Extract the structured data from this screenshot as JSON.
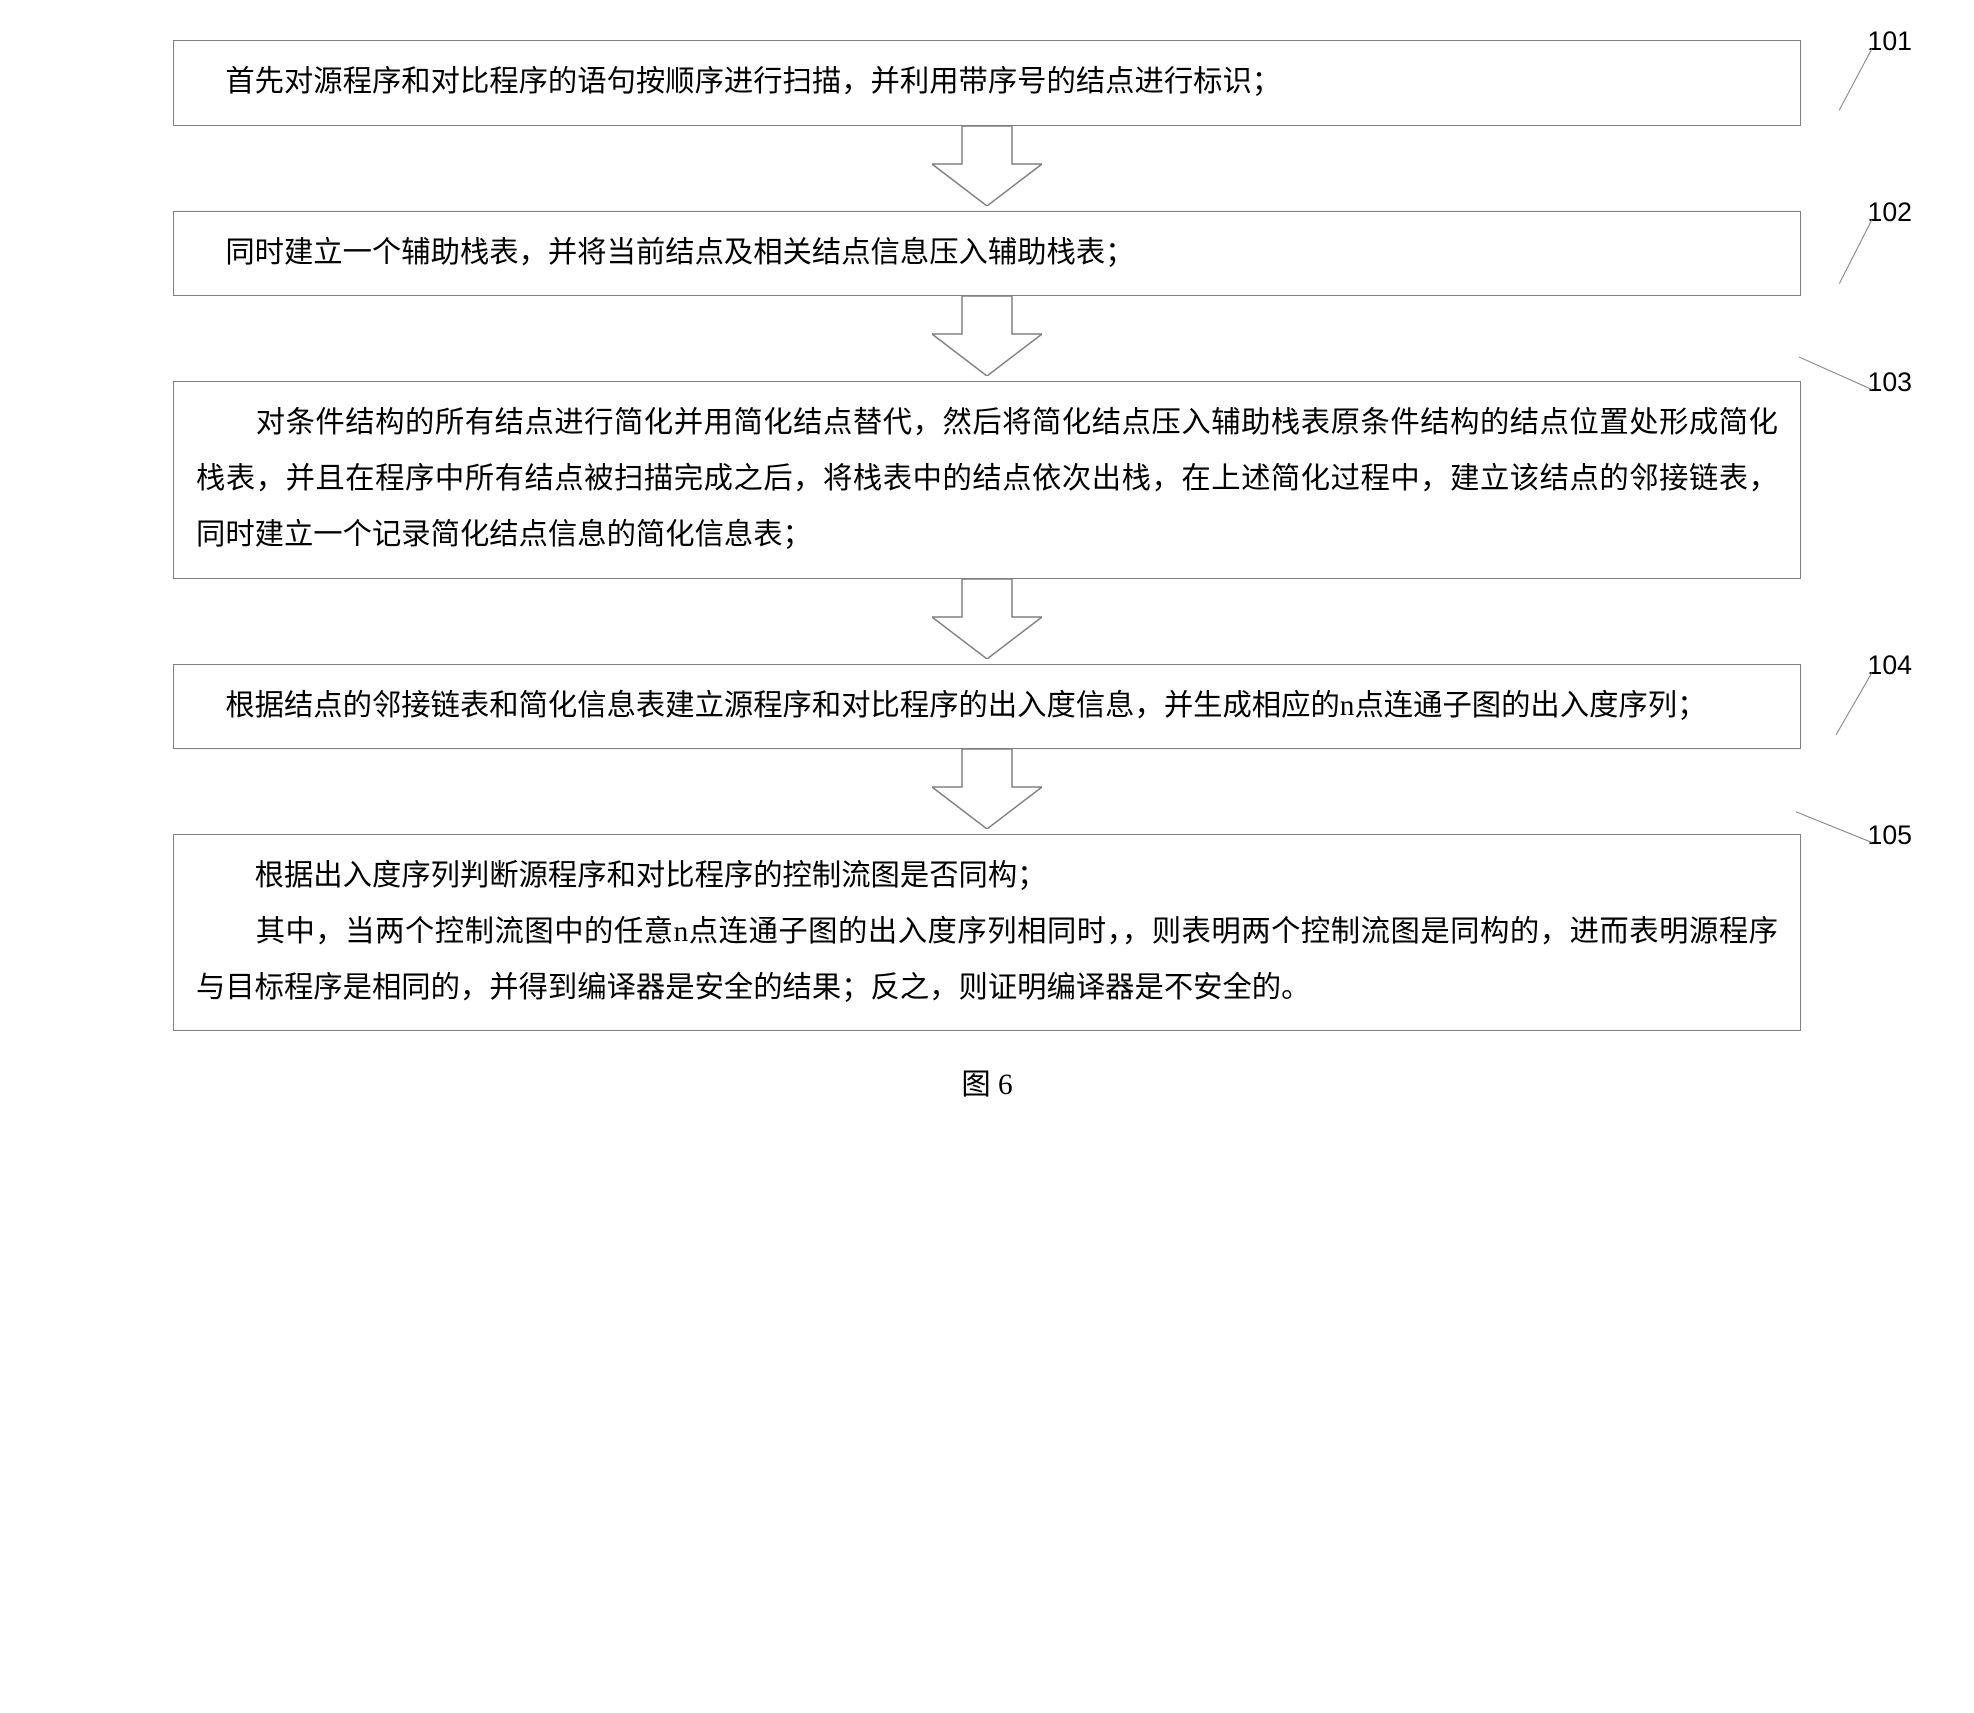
{
  "flowchart": {
    "caption": "图 6",
    "box_border_color": "#808080",
    "background_color": "#ffffff",
    "text_color": "#000000",
    "font_size_pt": 22,
    "label_font_size_pt": 20,
    "line_height": 1.9,
    "arrow": {
      "shaft_width": 50,
      "shaft_height": 38,
      "head_width": 110,
      "head_height": 42,
      "stroke": "#808080",
      "fill": "#ffffff",
      "stroke_width": 1.5
    },
    "steps": [
      {
        "label": "101",
        "text": "　首先对源程序和对比程序的语句按顺序进行扫描，并利用带序号的结点进行标识；",
        "box_width_pct": 88,
        "leader_angle_deg": -62,
        "leader_length": 70
      },
      {
        "label": "102",
        "text": "　同时建立一个辅助栈表，并将当前结点及相关结点信息压入辅助栈表；",
        "box_width_pct": 88,
        "leader_angle_deg": -63,
        "leader_length": 72
      },
      {
        "label": "103",
        "text": "　　对条件结构的所有结点进行简化并用简化结点替代，然后将简化结点压入辅助栈表原条件结构的结点位置处形成简化栈表，并且在程序中所有结点被扫描完成之后，将栈表中的结点依次出栈，在上述简化过程中，建立该结点的邻接链表，同时建立一个记录简化结点信息的简化信息表；",
        "box_width_pct": 88,
        "leader_angle_deg": 24,
        "leader_length": 80
      },
      {
        "label": "104",
        "text": "　根据结点的邻接链表和简化信息表建立源程序和对比程序的出入度信息，并生成相应的n点连通子图的出入度序列；",
        "box_width_pct": 88,
        "leader_angle_deg": -60,
        "leader_length": 72
      },
      {
        "label": "105",
        "text": "　　根据出入度序列判断源程序和对比程序的控制流图是否同构；\n　　其中，当两个控制流图中的任意n点连通子图的出入度序列相同时，，则表明两个控制流图是同构的，进而表明源程序与目标程序是相同的，并得到编译器是安全的结果；反之，则证明编译器是不安全的。",
        "box_width_pct": 88,
        "leader_angle_deg": 22,
        "leader_length": 82
      }
    ]
  }
}
